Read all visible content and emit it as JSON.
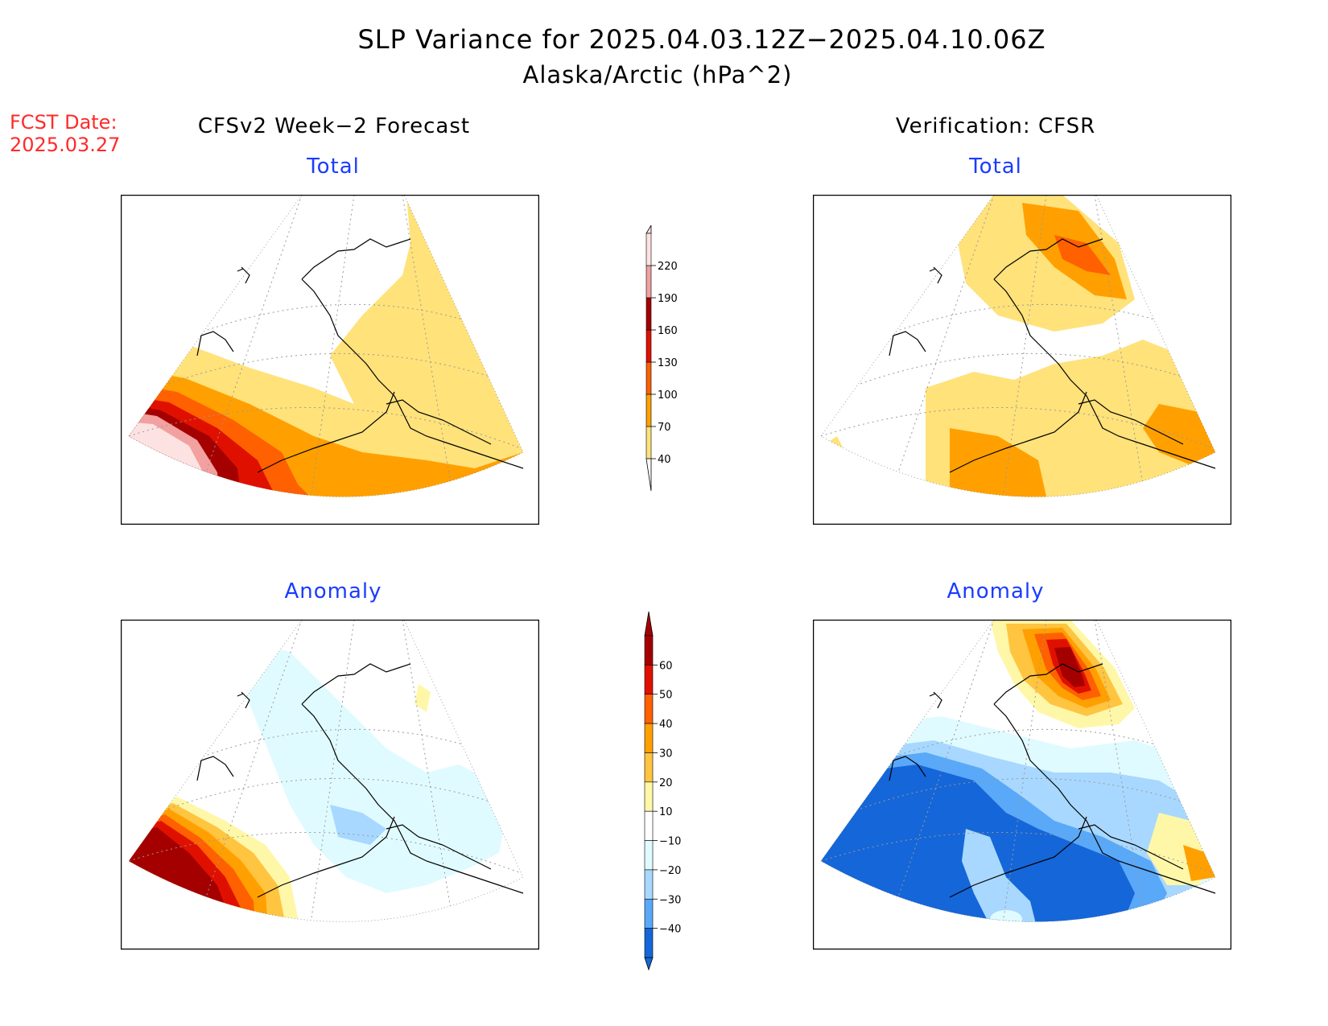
{
  "title": "SLP Variance for 2025.04.03.12Z−2025.04.10.06Z",
  "subtitle": "Alaska/Arctic (hPa^2)",
  "fcst_date_label": "FCST Date:",
  "fcst_date": "2025.03.27",
  "left_header": "CFSv2 Week−2 Forecast",
  "right_header": "Verification: CFSR",
  "panels": {
    "tl": "Total",
    "tr": "Total",
    "bl": "Anomaly",
    "br": "Anomaly"
  },
  "colorbar_total": {
    "levels": [
      "40",
      "70",
      "100",
      "130",
      "160",
      "190",
      "220"
    ],
    "colors": [
      "#ffe27a",
      "#ffa000",
      "#ff6000",
      "#e01000",
      "#a50000",
      "#f2a0a0",
      "#fde2e2"
    ]
  },
  "colorbar_anomaly": {
    "levels": [
      "60",
      "50",
      "40",
      "30",
      "20",
      "10",
      "−10",
      "−20",
      "−30",
      "−40"
    ],
    "colors": [
      "#a50000",
      "#e01000",
      "#ff6000",
      "#ffa000",
      "#ffc440",
      "#fff7a8",
      "#ffffff",
      "#e0fbff",
      "#a8d8ff",
      "#5aa8f8",
      "#1566d8"
    ]
  }
}
